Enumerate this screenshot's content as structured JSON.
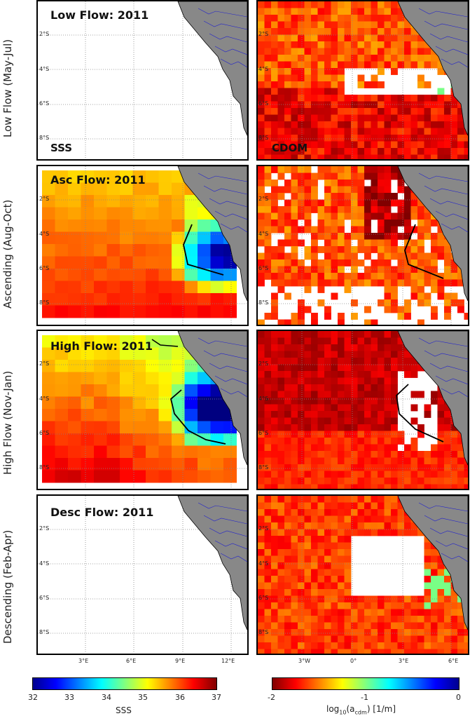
{
  "rows": [
    {
      "label": "Low Flow (May-Jul)",
      "title": "Low Flow: 2011"
    },
    {
      "label": "Ascending (Aug-Oct)",
      "title": "Asc Flow: 2011"
    },
    {
      "label": "High Flow (Nov-Jan)",
      "title": "High Flow: 2011"
    },
    {
      "label": "Descending (Feb-Apr)",
      "title": "Desc Flow: 2011"
    }
  ],
  "left_column": {
    "corner_label": "SSS"
  },
  "right_column": {
    "corner_label": "CDOM"
  },
  "y_ticks": [
    "2°S",
    "4°S",
    "6°S",
    "8°S"
  ],
  "left_x_ticks": [
    "3°E",
    "6°E",
    "9°E",
    "12°E"
  ],
  "right_x_ticks": [
    "3°W",
    "0°",
    "3°E",
    "6°E"
  ],
  "colorbars": {
    "sss": {
      "label": "SSS",
      "ticks": [
        "32",
        "33",
        "34",
        "35",
        "36",
        "37"
      ],
      "min": 32,
      "max": 37
    },
    "cdom": {
      "label_main": "log",
      "label_sub": "10",
      "label_paren_open": "(a",
      "label_sub2": "cdm",
      "label_rest": ") [1/m]",
      "ticks": [
        "-2",
        "-1",
        "0"
      ],
      "min": -2,
      "max": 0
    }
  },
  "colors": {
    "land": "#888888",
    "coast": "#2222cc",
    "front": "#000000"
  },
  "chart_data": [
    {
      "type": "heatmap",
      "panel": "SSS Low Flow: 2011",
      "values": "no data (blank panel)"
    },
    {
      "type": "heatmap",
      "panel": "SSS Asc Flow: 2011",
      "zlim": [
        32,
        37
      ],
      "values_description": "SSS ~35.5-36.5 offshore, fresh plume ~32-33.5 near 10-12°E, 4-6°S"
    },
    {
      "type": "heatmap",
      "panel": "SSS High Flow: 2011",
      "zlim": [
        32,
        37
      ],
      "values_description": "SSS ~35-36.8 offshore, fresh plume ~32.5-34 near 9-12°E, 3.5-6°S"
    },
    {
      "type": "heatmap",
      "panel": "SSS Desc Flow: 2011",
      "values": "no data (blank panel)"
    },
    {
      "type": "heatmap",
      "panel": "CDOM Low Flow",
      "zlim": [
        -2,
        0
      ]
    },
    {
      "type": "heatmap",
      "panel": "CDOM Ascending",
      "zlim": [
        -2,
        0
      ]
    },
    {
      "type": "heatmap",
      "panel": "CDOM High Flow",
      "zlim": [
        -2,
        0
      ]
    },
    {
      "type": "heatmap",
      "panel": "CDOM Descending",
      "zlim": [
        -2,
        0
      ]
    }
  ]
}
